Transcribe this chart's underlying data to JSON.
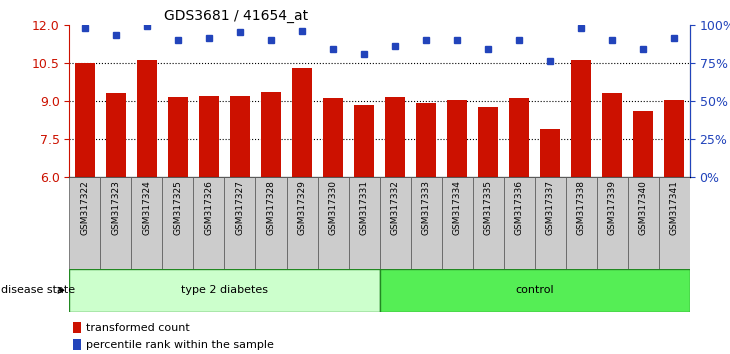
{
  "title": "GDS3681 / 41654_at",
  "samples": [
    "GSM317322",
    "GSM317323",
    "GSM317324",
    "GSM317325",
    "GSM317326",
    "GSM317327",
    "GSM317328",
    "GSM317329",
    "GSM317330",
    "GSM317331",
    "GSM317332",
    "GSM317333",
    "GSM317334",
    "GSM317335",
    "GSM317336",
    "GSM317337",
    "GSM317338",
    "GSM317339",
    "GSM317340",
    "GSM317341"
  ],
  "bar_values": [
    10.5,
    9.3,
    10.6,
    9.15,
    9.2,
    9.2,
    9.35,
    10.3,
    9.1,
    8.85,
    9.15,
    8.9,
    9.05,
    8.75,
    9.1,
    7.9,
    10.6,
    9.3,
    8.6,
    9.05
  ],
  "dot_values_pct": [
    98,
    93,
    99,
    90,
    91,
    95,
    90,
    96,
    84,
    81,
    86,
    90,
    90,
    84,
    90,
    76,
    98,
    90,
    84,
    91
  ],
  "ylim_left": [
    6,
    12
  ],
  "ylim_right": [
    0,
    100
  ],
  "yticks_left": [
    6,
    7.5,
    9,
    10.5,
    12
  ],
  "yticks_right": [
    0,
    25,
    50,
    75,
    100
  ],
  "ytick_right_labels": [
    "0%",
    "25%",
    "50%",
    "75%",
    "100%"
  ],
  "bar_color": "#cc1100",
  "dot_color": "#2244bb",
  "type2_diabetes_count": 10,
  "group1_label": "type 2 diabetes",
  "group2_label": "control",
  "legend_items": [
    "transformed count",
    "percentile rank within the sample"
  ],
  "disease_state_label": "disease state",
  "left_axis_color": "#cc1100",
  "right_axis_color": "#2244bb",
  "background_color": "#ffffff",
  "plot_bg_color": "#ffffff",
  "grid_color": "#000000",
  "group_bg_color_1": "#ccffcc",
  "group_bg_color_2": "#55ee55",
  "tick_bg_color": "#cccccc",
  "tick_border_color": "#555555"
}
